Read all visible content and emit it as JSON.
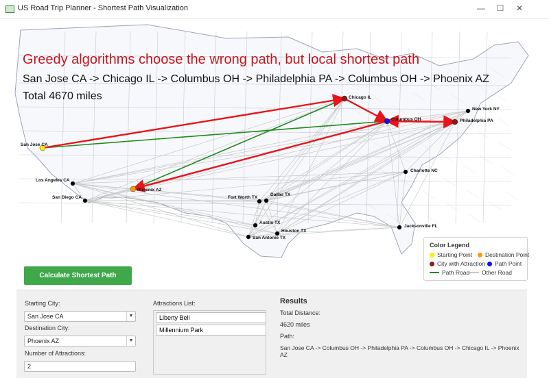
{
  "window": {
    "title": "US Road Trip Planner - Shortest Path Visualization",
    "controls": {
      "minimize": "—",
      "maximize": "☐",
      "close": "✕"
    }
  },
  "overlay": {
    "heading": "Greedy algorithms choose the wrong path, but local shortest path",
    "route": "San Jose CA -> Chicago IL -> Columbus OH -> Philadelphia PA -> Columbus OH -> Phoenix AZ",
    "total": "Total 4670 miles"
  },
  "map": {
    "colors": {
      "background": "#ffffff",
      "land": "#f7f8fb",
      "borders": "#9aa3b8",
      "other_road": "#c8c8c8",
      "path_road": "#1e8a1e",
      "greedy_path": "#e8141a"
    },
    "cities": [
      {
        "name": "San Jose CA",
        "type": "start",
        "color": "#ffee00"
      },
      {
        "name": "Los Angeles CA",
        "type": "city",
        "color": "#000000"
      },
      {
        "name": "San Diego CA",
        "type": "city",
        "color": "#000000"
      },
      {
        "name": "Phoenix AZ",
        "type": "destination",
        "color": "#ff9900"
      },
      {
        "name": "Fort Worth TX",
        "type": "city",
        "color": "#000000"
      },
      {
        "name": "Dallas TX",
        "type": "city",
        "color": "#000000"
      },
      {
        "name": "Austin TX",
        "type": "city",
        "color": "#000000"
      },
      {
        "name": "San Antonio TX",
        "type": "city",
        "color": "#000000"
      },
      {
        "name": "Houston TX",
        "type": "city",
        "color": "#000000"
      },
      {
        "name": "Chicago IL",
        "type": "attraction",
        "color": "#8b1a1a"
      },
      {
        "name": "Columbus OH",
        "type": "path",
        "color": "#1010ee"
      },
      {
        "name": "Philadelphia PA",
        "type": "attraction",
        "color": "#8b1a1a"
      },
      {
        "name": "New York NY",
        "type": "city",
        "color": "#000000"
      },
      {
        "name": "Charlotte NC",
        "type": "city",
        "color": "#000000"
      },
      {
        "name": "Jacksonville FL",
        "type": "city",
        "color": "#000000"
      }
    ]
  },
  "legend": {
    "title": "Color Legend",
    "items": [
      {
        "label": "Starting Point",
        "color": "#ffee00",
        "kind": "dot"
      },
      {
        "label": "Destination Point",
        "color": "#ff9900",
        "kind": "dot"
      },
      {
        "label": "City with Attraction",
        "color": "#8b1a1a",
        "kind": "dot"
      },
      {
        "label": "Path Point",
        "color": "#1010ee",
        "kind": "dot"
      },
      {
        "label": "Path Road",
        "color": "#1e8a1e",
        "kind": "line"
      },
      {
        "label": "Other Road",
        "color": "#c8c8c8",
        "kind": "line"
      }
    ]
  },
  "calculate_button": {
    "label": "Calculate Shortest Path",
    "color": "#3ea84a"
  },
  "form": {
    "starting_label": "Starting City:",
    "starting_value": "San Jose CA",
    "destination_label": "Destination City:",
    "destination_value": "Phoenix AZ",
    "attractions_count_label": "Number of Attractions:",
    "attractions_count_value": "2",
    "attractions_list_label": "Attractions List:",
    "attractions": [
      "Liberty Bell",
      "Millennium Park"
    ]
  },
  "results": {
    "title": "Results",
    "distance_label": "Total Distance:",
    "distance_value": "4620 miles",
    "path_label": "Path:",
    "path_value": "San Jose CA -> Columbus OH -> Philadelphia PA -> Columbus OH -> Chicago IL -> Phoenix AZ"
  }
}
